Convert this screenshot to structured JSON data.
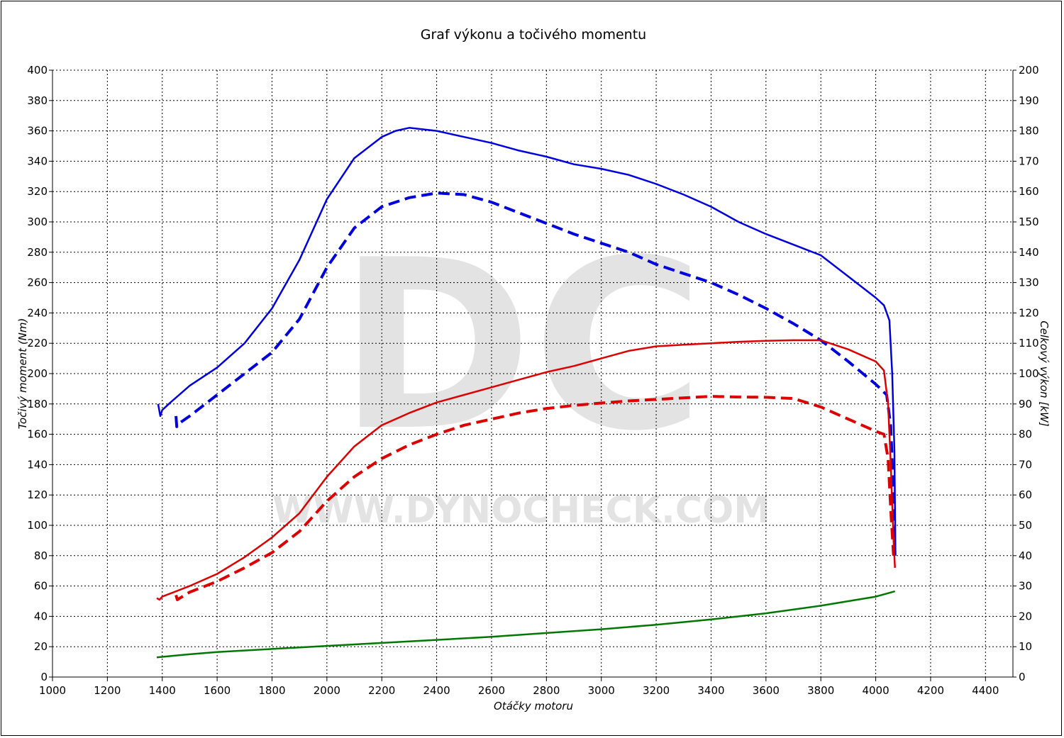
{
  "chart_data": {
    "type": "line",
    "title": "Graf výkonu a točivého momentu",
    "xlabel": "Otáčky motoru",
    "ylabel_left": "Točivý moment (Nm)",
    "ylabel_right": "Celkový výkon [kW]",
    "xlim": [
      1000,
      4500
    ],
    "ylim_left": [
      0,
      400
    ],
    "ylim_right": [
      0,
      200
    ],
    "x_ticks": [
      1000,
      1200,
      1400,
      1600,
      1800,
      2000,
      2200,
      2400,
      2600,
      2800,
      3000,
      3200,
      3400,
      3600,
      3800,
      4000,
      4200,
      4400
    ],
    "y_ticks_left": [
      0,
      20,
      40,
      60,
      80,
      100,
      120,
      140,
      160,
      180,
      200,
      220,
      240,
      260,
      280,
      300,
      320,
      340,
      360,
      380,
      400
    ],
    "y_ticks_right": [
      0,
      10,
      20,
      30,
      40,
      50,
      60,
      70,
      80,
      90,
      100,
      110,
      120,
      130,
      140,
      150,
      160,
      170,
      180,
      190,
      200
    ],
    "grid": true,
    "watermark": {
      "letters": "DC",
      "url": "WWW.DYNOCHECK.COM"
    },
    "series": [
      {
        "axis": "left",
        "color": "#0000dd",
        "dash": "solid",
        "points": [
          [
            1385,
            180
          ],
          [
            1393,
            172
          ],
          [
            1400,
            176
          ],
          [
            1430,
            181
          ],
          [
            1500,
            192
          ],
          [
            1600,
            204
          ],
          [
            1700,
            220
          ],
          [
            1800,
            243
          ],
          [
            1900,
            275
          ],
          [
            2000,
            315
          ],
          [
            2100,
            342
          ],
          [
            2200,
            356
          ],
          [
            2250,
            360
          ],
          [
            2300,
            362
          ],
          [
            2400,
            360
          ],
          [
            2500,
            356
          ],
          [
            2600,
            352
          ],
          [
            2700,
            347
          ],
          [
            2800,
            343
          ],
          [
            2900,
            338
          ],
          [
            3000,
            335
          ],
          [
            3100,
            331
          ],
          [
            3200,
            325
          ],
          [
            3300,
            318
          ],
          [
            3400,
            310
          ],
          [
            3500,
            300
          ],
          [
            3600,
            292
          ],
          [
            3700,
            285
          ],
          [
            3800,
            278
          ],
          [
            3900,
            264
          ],
          [
            4000,
            250
          ],
          [
            4030,
            245
          ],
          [
            4050,
            235
          ],
          [
            4060,
            200
          ],
          [
            4068,
            150
          ],
          [
            4072,
            80
          ]
        ]
      },
      {
        "axis": "left",
        "color": "#0000dd",
        "dash": "dashed",
        "points": [
          [
            1450,
            172
          ],
          [
            1453,
            165
          ],
          [
            1460,
            167
          ],
          [
            1500,
            172
          ],
          [
            1600,
            186
          ],
          [
            1700,
            200
          ],
          [
            1800,
            214
          ],
          [
            1900,
            236
          ],
          [
            2000,
            270
          ],
          [
            2100,
            296
          ],
          [
            2200,
            310
          ],
          [
            2300,
            316
          ],
          [
            2400,
            319
          ],
          [
            2500,
            318
          ],
          [
            2600,
            313
          ],
          [
            2700,
            306
          ],
          [
            2800,
            299
          ],
          [
            2900,
            292
          ],
          [
            3000,
            286
          ],
          [
            3100,
            280
          ],
          [
            3200,
            272
          ],
          [
            3300,
            266
          ],
          [
            3400,
            260
          ],
          [
            3500,
            252
          ],
          [
            3600,
            243
          ],
          [
            3700,
            233
          ],
          [
            3800,
            222
          ],
          [
            3900,
            208
          ],
          [
            4000,
            193
          ],
          [
            4040,
            186
          ],
          [
            4055,
            165
          ],
          [
            4065,
            120
          ],
          [
            4070,
            80
          ]
        ]
      },
      {
        "axis": "right",
        "color": "#dd0000",
        "dash": "solid",
        "points": [
          [
            1380,
            26
          ],
          [
            1390,
            25.5
          ],
          [
            1400,
            26.5
          ],
          [
            1500,
            30
          ],
          [
            1600,
            34
          ],
          [
            1700,
            39.5
          ],
          [
            1800,
            46
          ],
          [
            1900,
            54
          ],
          [
            2000,
            66
          ],
          [
            2100,
            76
          ],
          [
            2200,
            83
          ],
          [
            2300,
            87
          ],
          [
            2400,
            90.5
          ],
          [
            2500,
            93
          ],
          [
            2600,
            95.5
          ],
          [
            2700,
            98
          ],
          [
            2800,
            100.5
          ],
          [
            2900,
            102.5
          ],
          [
            3000,
            105
          ],
          [
            3100,
            107.5
          ],
          [
            3200,
            109
          ],
          [
            3300,
            109.5
          ],
          [
            3400,
            110
          ],
          [
            3500,
            110.5
          ],
          [
            3600,
            110.8
          ],
          [
            3700,
            111
          ],
          [
            3800,
            111
          ],
          [
            3900,
            108
          ],
          [
            4000,
            104
          ],
          [
            4030,
            101
          ],
          [
            4045,
            90
          ],
          [
            4055,
            70
          ],
          [
            4065,
            45
          ],
          [
            4070,
            36
          ]
        ]
      },
      {
        "axis": "right",
        "color": "#dd0000",
        "dash": "dashed",
        "points": [
          [
            1450,
            27
          ],
          [
            1455,
            25.5
          ],
          [
            1500,
            28
          ],
          [
            1600,
            31.5
          ],
          [
            1700,
            36
          ],
          [
            1800,
            41
          ],
          [
            1900,
            48
          ],
          [
            2000,
            58
          ],
          [
            2100,
            66
          ],
          [
            2200,
            72
          ],
          [
            2300,
            76.5
          ],
          [
            2400,
            80
          ],
          [
            2500,
            83
          ],
          [
            2600,
            85
          ],
          [
            2700,
            87
          ],
          [
            2800,
            88.5
          ],
          [
            2900,
            89.5
          ],
          [
            3000,
            90.3
          ],
          [
            3100,
            91
          ],
          [
            3200,
            91.5
          ],
          [
            3300,
            92
          ],
          [
            3400,
            92.5
          ],
          [
            3500,
            92.3
          ],
          [
            3600,
            92.2
          ],
          [
            3700,
            91.8
          ],
          [
            3800,
            89
          ],
          [
            3900,
            85
          ],
          [
            4000,
            81
          ],
          [
            4030,
            80
          ],
          [
            4045,
            72
          ],
          [
            4055,
            55
          ],
          [
            4065,
            40
          ]
        ]
      },
      {
        "axis": "left",
        "color": "#007700",
        "dash": "solid",
        "points": [
          [
            1380,
            13
          ],
          [
            1500,
            15
          ],
          [
            1600,
            16.5
          ],
          [
            1800,
            18.5
          ],
          [
            2000,
            20.5
          ],
          [
            2200,
            22.5
          ],
          [
            2400,
            24.5
          ],
          [
            2600,
            26.5
          ],
          [
            2800,
            29
          ],
          [
            3000,
            31.5
          ],
          [
            3200,
            34.5
          ],
          [
            3400,
            38
          ],
          [
            3600,
            42
          ],
          [
            3800,
            47
          ],
          [
            4000,
            53
          ],
          [
            4070,
            56.5
          ]
        ]
      }
    ]
  }
}
